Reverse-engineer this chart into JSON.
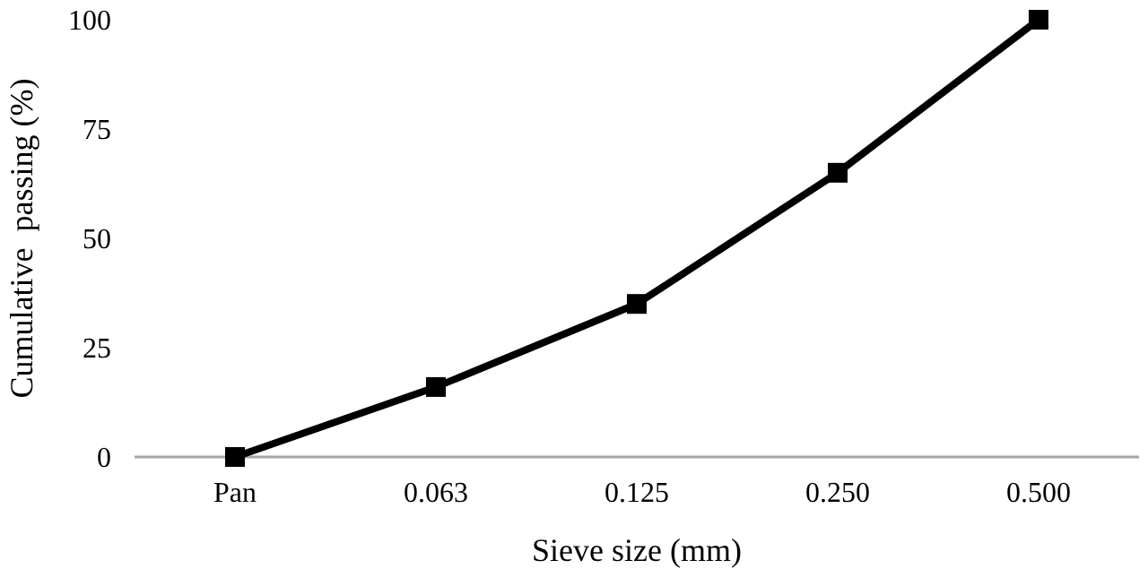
{
  "chart_data": {
    "type": "line",
    "xlabel": "Sieve size (mm)",
    "ylabel": "Cumulative  passing (%)",
    "categories": [
      "Pan",
      "0.063",
      "0.125",
      "0.250",
      "0.500"
    ],
    "series": [
      {
        "color": "#000000",
        "values": [
          0,
          16,
          35,
          65,
          100
        ]
      }
    ],
    "ylim": [
      0,
      100
    ],
    "yticks": [
      0,
      25,
      50,
      75,
      100
    ],
    "grid": false,
    "marker": "square",
    "line_style": "solid"
  }
}
